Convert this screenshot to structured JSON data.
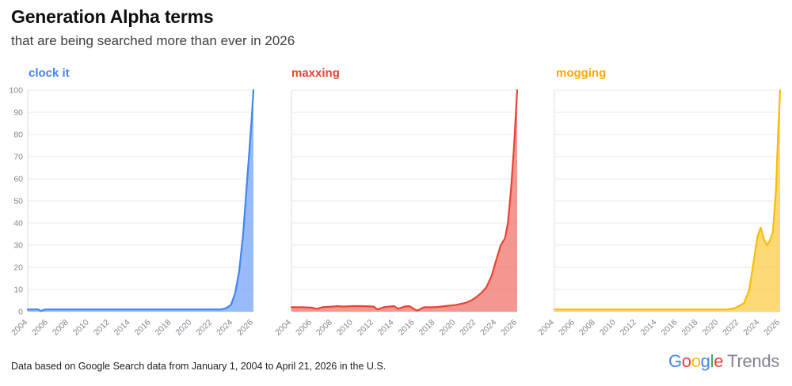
{
  "header": {
    "title": "Generation Alpha terms",
    "subtitle": "that are being searched more than ever in 2026"
  },
  "footer": {
    "note": "Data based on Google Search data from January 1, 2004 to April 21, 2026 in the U.S."
  },
  "logo": {
    "google_letters": [
      {
        "ch": "G",
        "color": "#4285F4"
      },
      {
        "ch": "o",
        "color": "#EA4335"
      },
      {
        "ch": "o",
        "color": "#FBBC04"
      },
      {
        "ch": "g",
        "color": "#4285F4"
      },
      {
        "ch": "l",
        "color": "#34A853"
      },
      {
        "ch": "e",
        "color": "#EA4335"
      }
    ],
    "suffix": "Trends",
    "suffix_color": "#80868B"
  },
  "chart_data": [
    {
      "type": "area",
      "name": "clock it",
      "color": "#4285F4",
      "label_color": "#4285F4",
      "fill_opacity": 0.55,
      "xlim": [
        2004,
        2026
      ],
      "ylim": [
        0,
        100
      ],
      "x_ticks": [
        2004,
        2006,
        2008,
        2010,
        2012,
        2014,
        2016,
        2018,
        2020,
        2022,
        2024,
        2026
      ],
      "y_ticks": [
        0,
        10,
        20,
        30,
        40,
        50,
        60,
        70,
        80,
        90,
        100
      ],
      "show_y_labels": true,
      "grid": true,
      "x": [
        2004,
        2004.5,
        2005,
        2005.3,
        2005.7,
        2006,
        2007,
        2008,
        2010,
        2012,
        2014,
        2016,
        2018,
        2020,
        2021,
        2022,
        2022.8,
        2023.3,
        2023.8,
        2024.2,
        2024.6,
        2025,
        2025.4,
        2025.8,
        2026
      ],
      "values": [
        1,
        1,
        1,
        0.3,
        1,
        1,
        1,
        1,
        1,
        1,
        1,
        1,
        1,
        1,
        1,
        1,
        1,
        1.5,
        3,
        8,
        18,
        35,
        60,
        85,
        100
      ]
    },
    {
      "type": "area",
      "name": "maxxing",
      "color": "#EA4335",
      "label_color": "#EA4335",
      "fill_opacity": 0.55,
      "xlim": [
        2004,
        2026
      ],
      "ylim": [
        0,
        100
      ],
      "x_ticks": [
        2004,
        2006,
        2008,
        2010,
        2012,
        2014,
        2016,
        2018,
        2020,
        2022,
        2024,
        2026
      ],
      "y_ticks": [
        0,
        10,
        20,
        30,
        40,
        50,
        60,
        70,
        80,
        90,
        100
      ],
      "show_y_labels": false,
      "grid": true,
      "x": [
        2004,
        2005,
        2006,
        2006.5,
        2007,
        2008,
        2008.5,
        2009,
        2010,
        2011,
        2012,
        2012.4,
        2013,
        2013.5,
        2014,
        2014.4,
        2015,
        2015.5,
        2016,
        2016.3,
        2016.8,
        2017,
        2018,
        2019,
        2019.5,
        2020,
        2020.5,
        2021,
        2021.5,
        2022,
        2022.5,
        2023,
        2023.5,
        2024,
        2024.4,
        2024.8,
        2025.1,
        2025.4,
        2025.7,
        2026
      ],
      "values": [
        2,
        2,
        1.8,
        1.2,
        2,
        2.3,
        2.5,
        2.3,
        2.5,
        2.5,
        2.3,
        1,
        2,
        2.3,
        2.5,
        1.3,
        2.3,
        2.5,
        1,
        0.5,
        1.8,
        2,
        2,
        2.5,
        2.8,
        3,
        3.5,
        4,
        5,
        6.5,
        8.5,
        11,
        16,
        24,
        30,
        33,
        40,
        55,
        75,
        100
      ]
    },
    {
      "type": "area",
      "name": "mogging",
      "color": "#FBBC04",
      "label_color": "#F9AB00",
      "fill_opacity": 0.55,
      "xlim": [
        2004,
        2026
      ],
      "ylim": [
        0,
        100
      ],
      "x_ticks": [
        2004,
        2006,
        2008,
        2010,
        2012,
        2014,
        2016,
        2018,
        2020,
        2022,
        2024,
        2026
      ],
      "y_ticks": [
        0,
        10,
        20,
        30,
        40,
        50,
        60,
        70,
        80,
        90,
        100
      ],
      "show_y_labels": false,
      "grid": true,
      "x": [
        2004,
        2006,
        2008,
        2010,
        2012,
        2014,
        2016,
        2018,
        2020,
        2020.8,
        2021.5,
        2022,
        2022.5,
        2023,
        2023.4,
        2023.8,
        2024.1,
        2024.4,
        2024.7,
        2025,
        2025.3,
        2025.6,
        2025.8,
        2026
      ],
      "values": [
        1,
        1,
        1,
        1,
        1,
        1,
        1,
        1,
        1,
        1,
        1.5,
        2.5,
        4,
        10,
        22,
        34,
        38,
        33,
        30,
        32,
        36,
        55,
        80,
        100
      ]
    }
  ]
}
